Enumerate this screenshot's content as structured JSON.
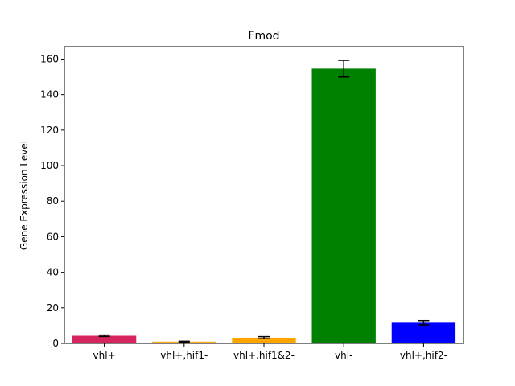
{
  "chart_data": {
    "type": "bar",
    "title": "Fmod",
    "xlabel": "",
    "ylabel": "Gene Expression Level",
    "ylim": [
      0,
      167
    ],
    "yticks": [
      0,
      20,
      40,
      60,
      80,
      100,
      120,
      140,
      160
    ],
    "categories": [
      "vhl+",
      "vhl+,hif1-",
      "vhl+,hif1&2-",
      "vhl-",
      "vhl+,hif2-"
    ],
    "values": [
      4.3,
      1.0,
      3.2,
      154.6,
      11.6
    ],
    "errors": [
      0.4,
      0.2,
      0.6,
      4.7,
      1.2
    ],
    "colors": [
      "#d6245e",
      "#f5a623",
      "#ffa500",
      "#008000",
      "#0000ff"
    ],
    "grid": false,
    "legend": "none"
  }
}
